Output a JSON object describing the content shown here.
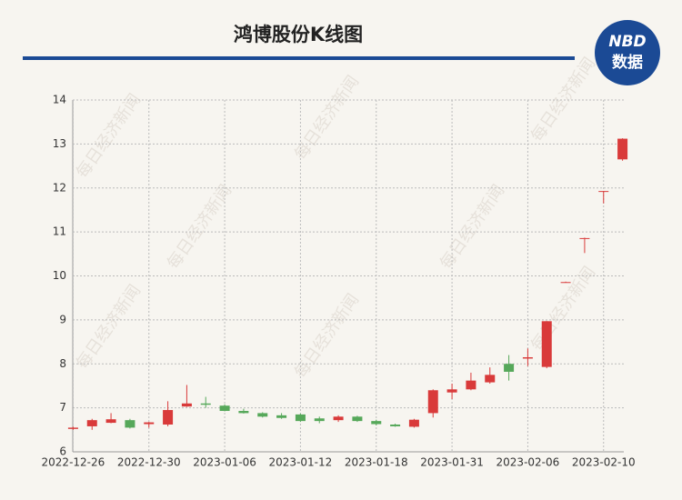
{
  "chart_data": {
    "type": "candlestick",
    "title": "鸿博股份K线图",
    "categories": [
      "2022-12-26",
      null,
      null,
      null,
      "2022-12-30",
      null,
      null,
      null,
      "2023-01-06",
      null,
      null,
      null,
      "2023-01-12",
      null,
      null,
      null,
      "2023-01-18",
      null,
      null,
      null,
      "2023-01-31",
      null,
      null,
      null,
      "2023-02-06",
      null,
      null,
      null,
      "2023-02-10",
      null
    ],
    "open": [
      6.52,
      6.58,
      6.66,
      6.72,
      6.63,
      6.62,
      7.03,
      7.1,
      7.05,
      6.93,
      6.88,
      6.83,
      6.85,
      6.76,
      6.72,
      6.8,
      6.7,
      6.62,
      6.57,
      6.88,
      7.35,
      7.42,
      7.58,
      8.0,
      8.12,
      7.93,
      9.85,
      10.85,
      11.92,
      12.65
    ],
    "high": [
      6.57,
      6.75,
      6.88,
      6.75,
      6.68,
      7.15,
      7.52,
      7.25,
      7.08,
      6.98,
      6.9,
      6.88,
      6.87,
      6.8,
      6.83,
      6.82,
      6.73,
      6.64,
      6.75,
      7.42,
      7.55,
      7.8,
      7.92,
      8.2,
      8.35,
      8.97,
      9.87,
      10.87,
      11.93,
      13.13
    ],
    "low": [
      6.5,
      6.5,
      6.65,
      6.53,
      6.55,
      6.58,
      7.02,
      7.0,
      6.92,
      6.87,
      6.78,
      6.75,
      6.68,
      6.65,
      6.68,
      6.68,
      6.6,
      6.57,
      6.55,
      6.78,
      7.2,
      7.4,
      7.55,
      7.62,
      7.95,
      7.9,
      9.85,
      10.52,
      11.65,
      12.62
    ],
    "close": [
      6.55,
      6.72,
      6.74,
      6.55,
      6.67,
      6.95,
      7.1,
      7.07,
      6.93,
      6.88,
      6.8,
      6.77,
      6.7,
      6.7,
      6.8,
      6.7,
      6.63,
      6.58,
      6.73,
      7.4,
      7.42,
      7.62,
      7.75,
      7.82,
      8.15,
      8.97,
      9.86,
      10.86,
      11.93,
      13.12
    ],
    "up_color": "#d93a3a",
    "down_color": "#56a85a",
    "ylim": [
      6,
      14
    ],
    "yticks": [
      6,
      7,
      8,
      9,
      10,
      11,
      12,
      13,
      14
    ],
    "grid": true
  },
  "logo": {
    "line1": "NBD",
    "line2": "数据"
  },
  "watermark": "每日经济新闻"
}
